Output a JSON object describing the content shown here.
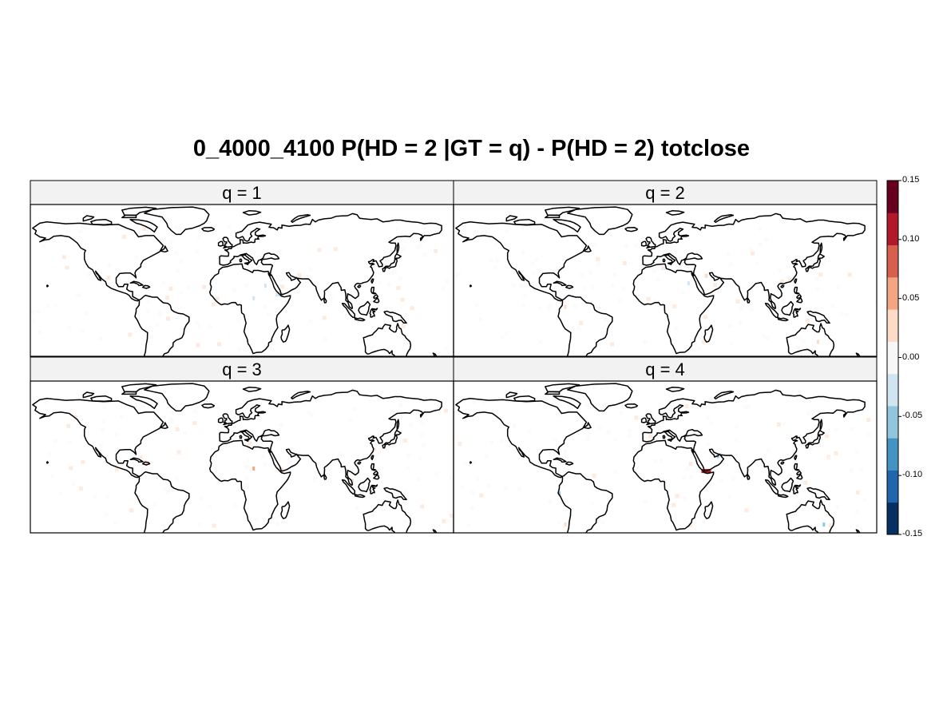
{
  "title": "0_4000_4100 P(HD = 2 |GT = q) - P(HD = 2) totclose",
  "panels": [
    {
      "label": "q = 1",
      "highlights": [
        {
          "lon": 42,
          "lat": 13,
          "value": -0.04,
          "w": 10
        },
        {
          "lon": 30,
          "lat": 20,
          "value": -0.03,
          "w": 3
        },
        {
          "lon": 20,
          "lat": 10,
          "value": -0.015,
          "w": 3
        }
      ]
    },
    {
      "label": "q = 2",
      "highlights": [
        {
          "lon": 45,
          "lat": 28,
          "value": 0.035,
          "w": 4
        },
        {
          "lon": -75,
          "lat": 3,
          "value": 0.035,
          "w": 3
        },
        {
          "lon": 140,
          "lat": -25,
          "value": 0.04,
          "w": 3
        },
        {
          "lon": 30,
          "lat": 22,
          "value": -0.02,
          "w": 3
        }
      ]
    },
    {
      "label": "q = 3",
      "highlights": [
        {
          "lon": 43,
          "lat": 14,
          "value": 0.035,
          "w": 6
        },
        {
          "lon": 20,
          "lat": 15,
          "value": 0.045,
          "w": 3
        },
        {
          "lon": 104,
          "lat": 5,
          "value": 0.04,
          "w": 3
        },
        {
          "lon": -72,
          "lat": 20,
          "value": 0.02,
          "w": 3
        }
      ]
    },
    {
      "label": "q = 4",
      "highlights": [
        {
          "lon": 45,
          "lat": 13,
          "value": 0.12,
          "w": 12
        },
        {
          "lon": 55,
          "lat": 25,
          "value": -0.05,
          "w": 3
        },
        {
          "lon": -80,
          "lat": -5,
          "value": -0.05,
          "w": 3
        },
        {
          "lon": 145,
          "lat": -30,
          "value": -0.06,
          "w": 3
        },
        {
          "lon": -75,
          "lat": -30,
          "value": 0.04,
          "w": 3
        }
      ]
    }
  ],
  "colorbar": {
    "min": -0.15,
    "max": 0.15,
    "ticks": [
      {
        "value": 0.15,
        "label": "0.15"
      },
      {
        "value": 0.1,
        "label": "0.10"
      },
      {
        "value": 0.05,
        "label": "0.05"
      },
      {
        "value": 0.0,
        "label": "0.00"
      },
      {
        "value": -0.05,
        "label": "-0.05"
      },
      {
        "value": -0.1,
        "label": "-0.10"
      },
      {
        "value": -0.15,
        "label": "-0.15"
      }
    ],
    "colors": [
      "#053061",
      "#2166ac",
      "#4393c3",
      "#92c5de",
      "#d1e5f0",
      "#f7f7f7",
      "#fddbc7",
      "#f4a582",
      "#d6604d",
      "#b2182b",
      "#67001f"
    ]
  }
}
